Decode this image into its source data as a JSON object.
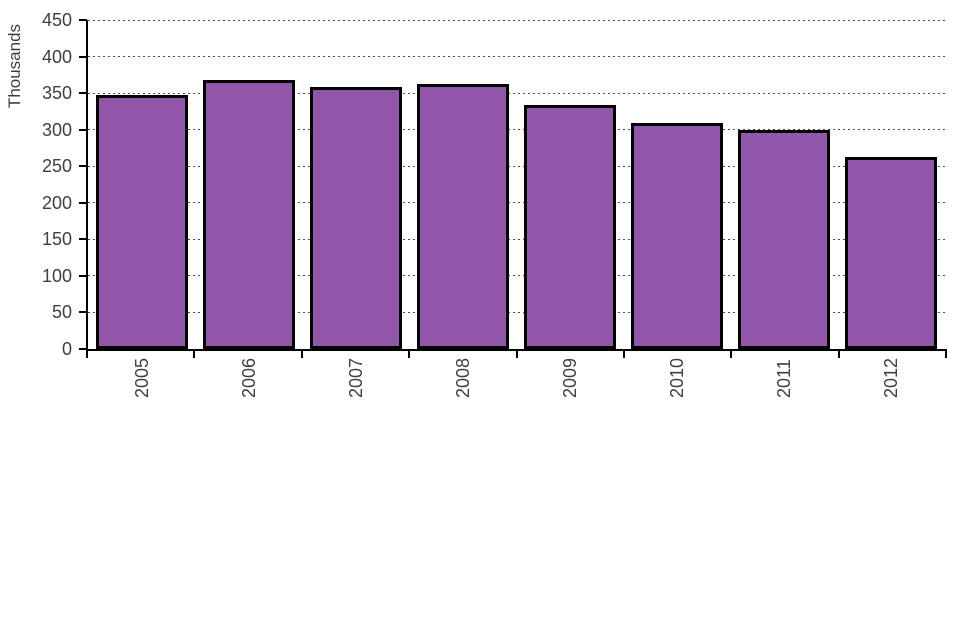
{
  "chart_data": {
    "type": "bar",
    "title": "",
    "ylabel": "Thousands",
    "xlabel": "",
    "categories": [
      "2005",
      "2006",
      "2007",
      "2008",
      "2009",
      "2010",
      "2011",
      "2012"
    ],
    "values": [
      348,
      368,
      359,
      362,
      334,
      309,
      300,
      262
    ],
    "ylim": [
      0,
      450
    ],
    "yticks": [
      0,
      50,
      100,
      150,
      200,
      250,
      300,
      350,
      400,
      450
    ],
    "grid": "horizontal-dashed",
    "legend": "none",
    "colors": {
      "bar_fill": "#9156A8",
      "bar_border": "#000000",
      "axis": "#000000",
      "gridline": "#4D4D4D",
      "text": "#3F3F3F",
      "background": "#FFFFFF"
    }
  }
}
